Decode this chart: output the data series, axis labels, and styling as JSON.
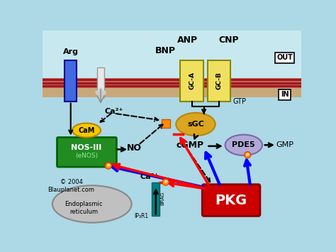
{
  "bg_color": "#add8e6",
  "p_label": "P",
  "out_label": "OUT",
  "in_label": "IN",
  "anp_label": "ANP",
  "bnp_label": "BNP",
  "cnp_label": "CNP",
  "gtp_label": "GTP",
  "arg_label": "Arg",
  "ca_upper_label": "Ca²⁺",
  "cam_label": "CaM",
  "nos_label": "NOS-III",
  "enos_label": "(eNOS)",
  "no_label": "NO",
  "sgc_label": "sGC",
  "cgmp_label": "cGMP",
  "pde5_label": "PDE5",
  "gmp_label": "GMP",
  "pkg_label": "PKG",
  "ca_lower_label": "Ca²⁺",
  "er_label": "Endoplasmic\nreticulum",
  "ip3r1_label": "IP₃R1",
  "brag_label": "BRAG",
  "copyright_label": "© 2004\nBlauplanet.com"
}
